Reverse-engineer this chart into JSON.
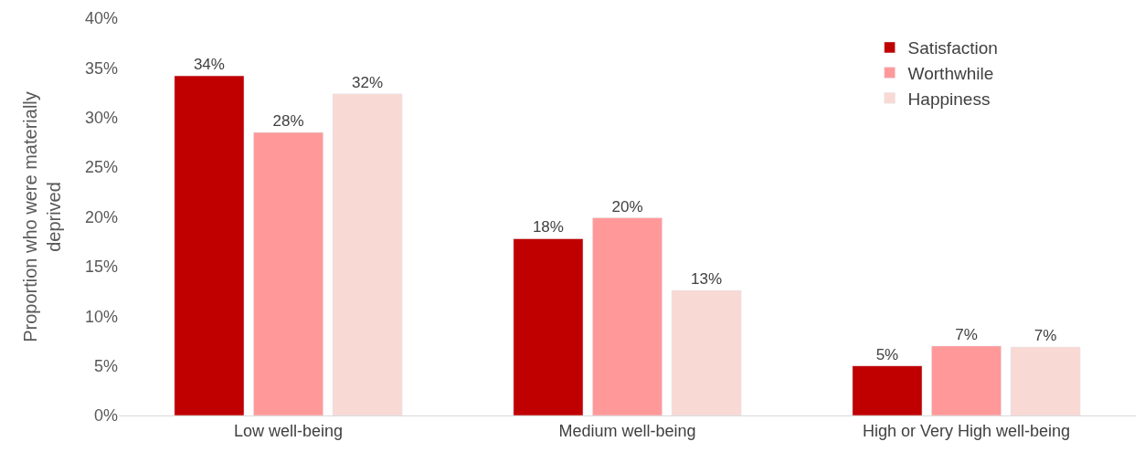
{
  "chart_data": {
    "type": "bar",
    "ylabel": "Proportion who were materially\ndeprived",
    "categories": [
      "Low well-being",
      "Medium well-being",
      "High or Very High well-being"
    ],
    "series": [
      {
        "name": "Satisfaction",
        "color": "#c00000",
        "values": [
          34.2,
          17.8,
          5.0
        ],
        "value_labels": [
          "34%",
          "18%",
          "5%"
        ]
      },
      {
        "name": "Worthwhile",
        "color": "#ff9999",
        "values": [
          28.5,
          19.9,
          7.0
        ],
        "value_labels": [
          "28%",
          "20%",
          "7%"
        ]
      },
      {
        "name": "Happiness",
        "color": "#f8d9d4",
        "values": [
          32.4,
          12.6,
          6.9
        ],
        "value_labels": [
          "32%",
          "13%",
          "7%"
        ]
      }
    ],
    "ylim": [
      0,
      40
    ],
    "yticks": [
      {
        "value": 0,
        "label": "0%"
      },
      {
        "value": 5,
        "label": "5%"
      },
      {
        "value": 10,
        "label": "10%"
      },
      {
        "value": 15,
        "label": "15%"
      },
      {
        "value": 20,
        "label": "20%"
      },
      {
        "value": 25,
        "label": "25%"
      },
      {
        "value": 30,
        "label": "30%"
      },
      {
        "value": 35,
        "label": "35%"
      },
      {
        "value": 40,
        "label": "40%"
      }
    ],
    "legend": "top right"
  }
}
